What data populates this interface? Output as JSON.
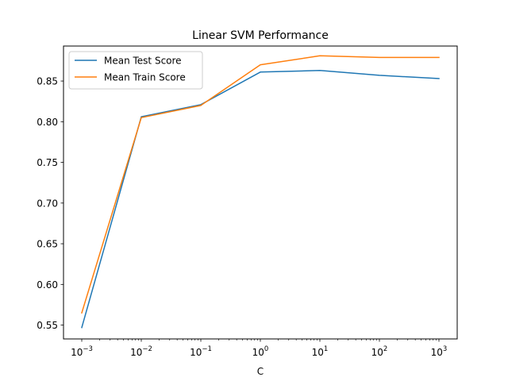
{
  "chart_data": {
    "type": "line",
    "title": "Linear SVM Performance",
    "xlabel": "C",
    "ylabel": "",
    "xscale": "log",
    "x": [
      0.001,
      0.01,
      0.1,
      1,
      10,
      100,
      1000
    ],
    "xtick_labels": [
      {
        "base": "10",
        "exp": "−3"
      },
      {
        "base": "10",
        "exp": "−2"
      },
      {
        "base": "10",
        "exp": "−1"
      },
      {
        "base": "10",
        "exp": "0"
      },
      {
        "base": "10",
        "exp": "1"
      },
      {
        "base": "10",
        "exp": "2"
      },
      {
        "base": "10",
        "exp": "3"
      }
    ],
    "ylim": [
      0.533,
      0.893
    ],
    "yticks": [
      0.55,
      0.6,
      0.65,
      0.7,
      0.75,
      0.8,
      0.85
    ],
    "ytick_labels": [
      "0.55",
      "0.60",
      "0.65",
      "0.70",
      "0.75",
      "0.80",
      "0.85"
    ],
    "grid": false,
    "legend_position": "top-left",
    "series": [
      {
        "name": "Mean Test Score",
        "color": "#1f77b4",
        "values": [
          0.547,
          0.806,
          0.821,
          0.861,
          0.863,
          0.857,
          0.853
        ]
      },
      {
        "name": "Mean Train Score",
        "color": "#ff7f0e",
        "values": [
          0.565,
          0.805,
          0.82,
          0.87,
          0.881,
          0.879,
          0.879
        ]
      }
    ]
  }
}
